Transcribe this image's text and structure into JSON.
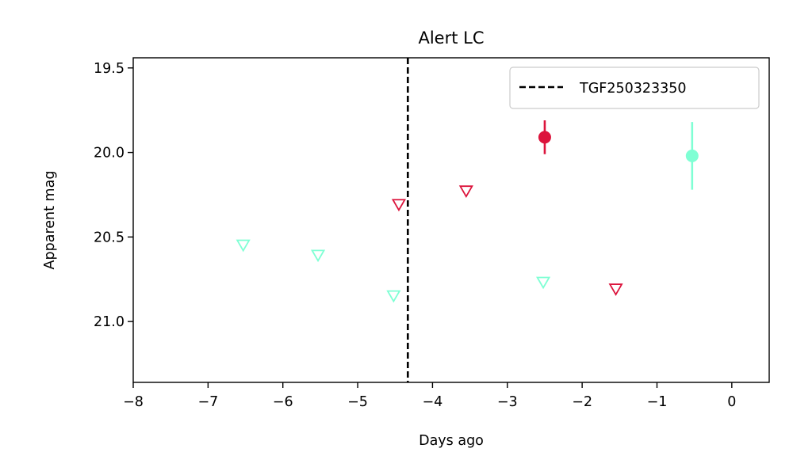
{
  "chart_data": {
    "type": "scatter",
    "title": "Alert LC",
    "xlabel": "Days ago",
    "ylabel": "Apparent mag",
    "xlim": [
      -8,
      0.5
    ],
    "ylim": [
      21.36,
      19.44
    ],
    "y_inverted": true,
    "grid": false,
    "legend_placement": "top-right",
    "xticks": [
      -8,
      -7,
      -6,
      -5,
      -4,
      -3,
      -2,
      -1,
      0
    ],
    "xtick_labels": [
      "−8",
      "−7",
      "−6",
      "−5",
      "−4",
      "−3",
      "−2",
      "−1",
      "0"
    ],
    "yticks": [
      19.5,
      20.0,
      20.5,
      21.0
    ],
    "ytick_labels": [
      "19.5",
      "20.0",
      "20.5",
      "21.0"
    ],
    "vline": {
      "x": -4.33,
      "style": "dashed",
      "color": "#000000",
      "label": "TGF250323350"
    },
    "series": [
      {
        "kind": "detection",
        "color": "#dc143c",
        "marker": "circle-filled",
        "points": [
          {
            "x": -2.5,
            "y": 19.91,
            "yerr": 0.1
          }
        ]
      },
      {
        "kind": "detection",
        "color": "#7fffd4",
        "marker": "circle-filled",
        "points": [
          {
            "x": -0.53,
            "y": 20.02,
            "yerr": 0.2
          }
        ]
      },
      {
        "kind": "upper_limit",
        "color": "#dc143c",
        "marker": "triangle-down-open",
        "points": [
          {
            "x": -4.45,
            "y": 20.31
          },
          {
            "x": -3.55,
            "y": 20.23
          },
          {
            "x": -1.55,
            "y": 20.81
          }
        ]
      },
      {
        "kind": "upper_limit",
        "color": "#7fffd4",
        "marker": "triangle-down-open",
        "points": [
          {
            "x": -6.53,
            "y": 20.55
          },
          {
            "x": -5.53,
            "y": 20.61
          },
          {
            "x": -4.52,
            "y": 20.85
          },
          {
            "x": -2.52,
            "y": 20.77
          }
        ]
      }
    ]
  }
}
